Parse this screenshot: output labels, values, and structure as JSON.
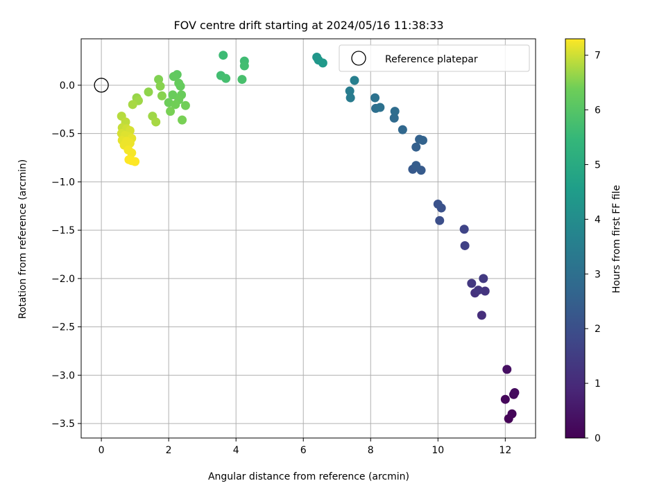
{
  "chart_data": {
    "type": "scatter",
    "title": "FOV centre drift starting at 2024/05/16 11:38:33",
    "xlabel": "Angular distance from reference (arcmin)",
    "ylabel": "Rotation from reference (arcmin)",
    "xlim": [
      -0.6,
      12.9
    ],
    "ylim": [
      -3.65,
      0.48
    ],
    "xticks": [
      0,
      2,
      4,
      6,
      8,
      10,
      12
    ],
    "xtick_labels": [
      "0",
      "2",
      "4",
      "6",
      "8",
      "10",
      "12"
    ],
    "yticks": [
      0.0,
      -0.5,
      -1.0,
      -1.5,
      -2.0,
      -2.5,
      -3.0,
      -3.5
    ],
    "ytick_labels": [
      "0.0",
      "−0.5",
      "−1.0",
      "−1.5",
      "−2.0",
      "−2.5",
      "−3.0",
      "−3.5"
    ],
    "grid": true,
    "legend": {
      "position": "top-right",
      "entries": [
        {
          "label": "Reference platepar",
          "marker": "open-circle"
        }
      ]
    },
    "reference_point": {
      "x": 0.0,
      "y": 0.0
    },
    "colorbar": {
      "label": "Hours from first FF file",
      "colormap": "viridis",
      "range": [
        0,
        7.3
      ],
      "ticks": [
        0,
        1,
        2,
        3,
        4,
        5,
        6,
        7
      ],
      "tick_labels": [
        "0",
        "1",
        "2",
        "3",
        "4",
        "5",
        "6",
        "7"
      ]
    },
    "series": [
      {
        "points": [
          {
            "x": 12.1,
            "y": -3.45,
            "c": 0.05
          },
          {
            "x": 12.2,
            "y": -3.4,
            "c": 0.1
          },
          {
            "x": 12.0,
            "y": -3.25,
            "c": 0.15
          },
          {
            "x": 12.25,
            "y": -3.2,
            "c": 0.2
          },
          {
            "x": 12.28,
            "y": -3.18,
            "c": 0.25
          },
          {
            "x": 12.05,
            "y": -2.94,
            "c": 0.35
          },
          {
            "x": 11.3,
            "y": -2.38,
            "c": 1.1
          },
          {
            "x": 11.1,
            "y": -2.15,
            "c": 1.2
          },
          {
            "x": 11.4,
            "y": -2.13,
            "c": 1.25
          },
          {
            "x": 11.2,
            "y": -2.12,
            "c": 1.3
          },
          {
            "x": 11.0,
            "y": -2.05,
            "c": 1.35
          },
          {
            "x": 11.35,
            "y": -2.0,
            "c": 1.4
          },
          {
            "x": 10.8,
            "y": -1.66,
            "c": 1.6
          },
          {
            "x": 10.78,
            "y": -1.49,
            "c": 1.7
          },
          {
            "x": 10.05,
            "y": -1.4,
            "c": 2.0
          },
          {
            "x": 10.1,
            "y": -1.27,
            "c": 2.05
          },
          {
            "x": 10.0,
            "y": -1.23,
            "c": 2.1
          },
          {
            "x": 9.25,
            "y": -0.87,
            "c": 2.3
          },
          {
            "x": 9.5,
            "y": -0.88,
            "c": 2.35
          },
          {
            "x": 9.35,
            "y": -0.83,
            "c": 2.4
          },
          {
            "x": 9.35,
            "y": -0.64,
            "c": 2.5
          },
          {
            "x": 9.45,
            "y": -0.56,
            "c": 2.55
          },
          {
            "x": 9.55,
            "y": -0.57,
            "c": 2.6
          },
          {
            "x": 8.95,
            "y": -0.46,
            "c": 2.75
          },
          {
            "x": 8.7,
            "y": -0.34,
            "c": 2.85
          },
          {
            "x": 8.72,
            "y": -0.27,
            "c": 2.9
          },
          {
            "x": 8.15,
            "y": -0.24,
            "c": 3.0
          },
          {
            "x": 8.28,
            "y": -0.23,
            "c": 3.05
          },
          {
            "x": 8.13,
            "y": -0.13,
            "c": 3.1
          },
          {
            "x": 7.4,
            "y": -0.13,
            "c": 3.4
          },
          {
            "x": 7.38,
            "y": -0.06,
            "c": 3.45
          },
          {
            "x": 7.52,
            "y": 0.05,
            "c": 3.55
          },
          {
            "x": 6.4,
            "y": 0.29,
            "c": 4.3
          },
          {
            "x": 6.45,
            "y": 0.26,
            "c": 4.35
          },
          {
            "x": 6.58,
            "y": 0.23,
            "c": 4.4
          },
          {
            "x": 3.62,
            "y": 0.31,
            "c": 5.6
          },
          {
            "x": 3.55,
            "y": 0.1,
            "c": 5.7
          },
          {
            "x": 3.7,
            "y": 0.07,
            "c": 5.75
          },
          {
            "x": 4.25,
            "y": 0.25,
            "c": 5.65
          },
          {
            "x": 4.25,
            "y": 0.2,
            "c": 5.7
          },
          {
            "x": 4.18,
            "y": 0.06,
            "c": 5.8
          },
          {
            "x": 2.25,
            "y": 0.11,
            "c": 6.15
          },
          {
            "x": 2.15,
            "y": 0.09,
            "c": 6.2
          },
          {
            "x": 2.3,
            "y": 0.02,
            "c": 6.25
          },
          {
            "x": 2.35,
            "y": -0.01,
            "c": 6.25
          },
          {
            "x": 2.38,
            "y": -0.1,
            "c": 6.3
          },
          {
            "x": 2.12,
            "y": -0.1,
            "c": 6.3
          },
          {
            "x": 2.3,
            "y": -0.15,
            "c": 6.35
          },
          {
            "x": 2.0,
            "y": -0.18,
            "c": 6.35
          },
          {
            "x": 2.2,
            "y": -0.2,
            "c": 6.4
          },
          {
            "x": 2.5,
            "y": -0.21,
            "c": 6.4
          },
          {
            "x": 2.05,
            "y": -0.27,
            "c": 6.45
          },
          {
            "x": 2.4,
            "y": -0.36,
            "c": 6.45
          },
          {
            "x": 1.7,
            "y": 0.06,
            "c": 6.5
          },
          {
            "x": 1.75,
            "y": -0.01,
            "c": 6.55
          },
          {
            "x": 1.8,
            "y": -0.11,
            "c": 6.55
          },
          {
            "x": 1.4,
            "y": -0.07,
            "c": 6.6
          },
          {
            "x": 1.05,
            "y": -0.13,
            "c": 6.65
          },
          {
            "x": 1.1,
            "y": -0.16,
            "c": 6.7
          },
          {
            "x": 0.93,
            "y": -0.2,
            "c": 6.75
          },
          {
            "x": 1.52,
            "y": -0.32,
            "c": 6.7
          },
          {
            "x": 1.62,
            "y": -0.38,
            "c": 6.75
          },
          {
            "x": 0.6,
            "y": -0.32,
            "c": 6.85
          },
          {
            "x": 0.72,
            "y": -0.38,
            "c": 6.9
          },
          {
            "x": 0.62,
            "y": -0.44,
            "c": 6.95
          },
          {
            "x": 0.75,
            "y": -0.45,
            "c": 7.0
          },
          {
            "x": 0.85,
            "y": -0.47,
            "c": 7.05
          },
          {
            "x": 0.6,
            "y": -0.5,
            "c": 7.05
          },
          {
            "x": 0.7,
            "y": -0.52,
            "c": 7.1
          },
          {
            "x": 0.8,
            "y": -0.53,
            "c": 7.1
          },
          {
            "x": 0.9,
            "y": -0.55,
            "c": 7.15
          },
          {
            "x": 0.62,
            "y": -0.57,
            "c": 7.15
          },
          {
            "x": 0.75,
            "y": -0.58,
            "c": 7.2
          },
          {
            "x": 0.85,
            "y": -0.6,
            "c": 7.2
          },
          {
            "x": 0.68,
            "y": -0.62,
            "c": 7.2
          },
          {
            "x": 0.8,
            "y": -0.67,
            "c": 7.25
          },
          {
            "x": 0.9,
            "y": -0.7,
            "c": 7.25
          },
          {
            "x": 0.82,
            "y": -0.77,
            "c": 7.3
          },
          {
            "x": 0.9,
            "y": -0.78,
            "c": 7.3
          },
          {
            "x": 1.0,
            "y": -0.79,
            "c": 7.3
          }
        ]
      }
    ]
  }
}
